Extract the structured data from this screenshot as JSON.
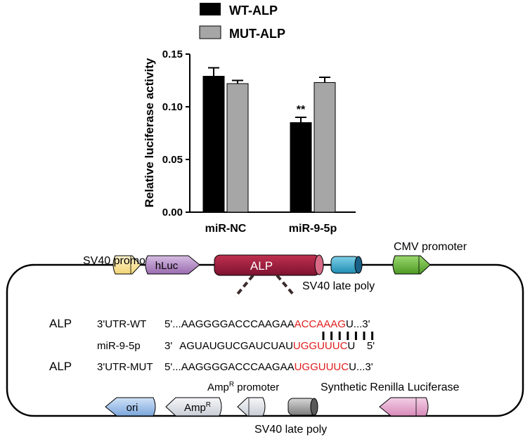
{
  "chart_data": {
    "type": "bar",
    "title": "",
    "xlabel": "",
    "ylabel": "Relative luciferase activity",
    "categories": [
      "miR-NC",
      "miR-9-5p"
    ],
    "series": [
      {
        "name": "WT-ALP",
        "color": "#000000",
        "values": [
          0.129,
          0.085
        ],
        "errors": [
          0.008,
          0.005
        ]
      },
      {
        "name": "MUT-ALP",
        "color": "#a6a6a6",
        "values": [
          0.122,
          0.123
        ],
        "errors": [
          0.003,
          0.005
        ]
      }
    ],
    "ylim": [
      0,
      0.15
    ],
    "yticks": [
      "0.00",
      "0.05",
      "0.10",
      "0.15"
    ],
    "grid": false,
    "legend_position": "top",
    "annotations": [
      {
        "series": "WT-ALP",
        "category": "miR-9-5p",
        "text": "**"
      }
    ]
  },
  "diagram": {
    "labels": {
      "sv40_promoter": "SV40 promoter",
      "hluc": "hLuc",
      "alp": "ALP",
      "cmv_promoter": "CMV promoter",
      "sv40_late_poly_top": "SV40 late poly",
      "ori": "ori",
      "amp_r_box": "Amp",
      "amp_r_promoter": "Amp",
      "amp_r_promoter_suffix": " promoter",
      "superscript_r": "R",
      "sv40_late_poly_bottom": "SV40 late poly",
      "synthetic_renilla": "Synthetic Renilla Luciferase"
    },
    "sequences": {
      "wt": {
        "gene": "ALP",
        "name": "3'UTR-WT",
        "prime5": "5'...",
        "seq_black": "AAGGGGACCCAAGAA",
        "seq_red": "ACCAAAG",
        "seq_tail": "U...3'"
      },
      "mir": {
        "name": "miR-9-5p",
        "prime3": "3'",
        "seq_black": "AGUAUGUCGAUCUAU",
        "seq_red": "UGGUUUC",
        "seq_tail": "U    5'"
      },
      "mut": {
        "gene": "ALP",
        "name": "3'UTR-MUT",
        "prime5": "5'...",
        "seq_black": "AAGGGGACCCAAGAA",
        "seq_red": "UGGUUUC",
        "seq_tail": "U...3'"
      }
    },
    "colors": {
      "sv40_promoter": "#fbe8a6",
      "hluc": "#b48ac6",
      "alp": "#9a1b3c",
      "sv40_late_poly_top": "#3aabcf",
      "cmv_promoter": "#6bbf3d",
      "ori": "#a9c8ec",
      "amp_r": "#e4e8ee",
      "sv40_late_poly_bottom": "#9e9e9e",
      "renilla": "#e6a8cf",
      "seed_red": "#e01c1c"
    }
  }
}
